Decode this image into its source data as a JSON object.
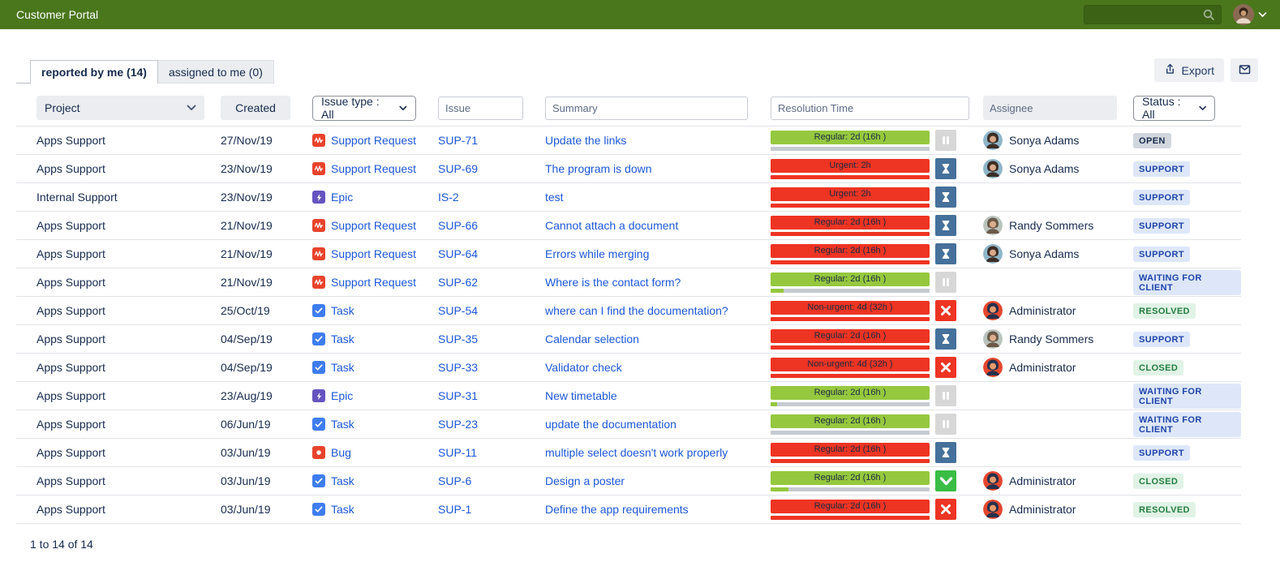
{
  "app": {
    "title": "Customer Portal"
  },
  "header": {
    "search_placeholder": ""
  },
  "tabs": {
    "reported": "reported by me (14)",
    "assigned": "assigned to me (0)"
  },
  "toolbar": {
    "export_label": "Export"
  },
  "filters": {
    "project_label": "Project",
    "created_label": "Created",
    "issue_type_label": "Issue type : All",
    "issue_placeholder": "Issue",
    "summary_placeholder": "Summary",
    "resolution_placeholder": "Resolution Time",
    "assignee_placeholder": "Assignee",
    "status_label": "Status : All"
  },
  "colors": {
    "appbar_green": "#4a771c",
    "sla_green": "#95c83e",
    "sla_red": "#ee3423",
    "sla_gray": "#c6cbd1",
    "hourglass_blue": "#45719b",
    "check_green": "#3abd45",
    "link_blue": "#1d58d8",
    "badge_blue_bg": "#dee7fa",
    "badge_green_bg": "#e1f3e6",
    "badge_gray_bg": "#d2d6dd"
  },
  "table": {
    "rows": [
      {
        "project": "Apps Support",
        "created": "27/Nov/19",
        "issue_type": "Support Request",
        "issue_key": "SUP-71",
        "summary": "Update the links",
        "resolution": {
          "label": "Regular: 2d (16h )",
          "bar_color": "green",
          "sub_bar": "gray",
          "sub_fill_pct": 0,
          "icon": "pause-icon"
        },
        "assignee": "Sonya Adams",
        "avatar": "sonya",
        "status": "OPEN",
        "status_color": "gray"
      },
      {
        "project": "Apps Support",
        "created": "23/Nov/19",
        "issue_type": "Support Request",
        "issue_key": "SUP-69",
        "summary": "The program is down",
        "resolution": {
          "label": "Urgent: 2h",
          "bar_color": "red",
          "sub_bar": "red",
          "sub_fill_pct": 100,
          "icon": "hourglass-icon"
        },
        "assignee": "Sonya Adams",
        "avatar": "sonya",
        "status": "SUPPORT",
        "status_color": "blue"
      },
      {
        "project": "Internal Support",
        "created": "23/Nov/19",
        "issue_type": "Epic",
        "issue_key": "IS-2",
        "summary": "test",
        "resolution": {
          "label": "Urgent: 2h",
          "bar_color": "red",
          "sub_bar": "red",
          "sub_fill_pct": 100,
          "icon": "hourglass-icon"
        },
        "assignee": null,
        "avatar": null,
        "status": "SUPPORT",
        "status_color": "blue"
      },
      {
        "project": "Apps Support",
        "created": "21/Nov/19",
        "issue_type": "Support Request",
        "issue_key": "SUP-66",
        "summary": "Cannot attach a document",
        "resolution": {
          "label": "Regular: 2d (16h )",
          "bar_color": "red",
          "sub_bar": "red",
          "sub_fill_pct": 100,
          "icon": "hourglass-icon"
        },
        "assignee": "Randy Sommers",
        "avatar": "randy",
        "status": "SUPPORT",
        "status_color": "blue"
      },
      {
        "project": "Apps Support",
        "created": "21/Nov/19",
        "issue_type": "Support Request",
        "issue_key": "SUP-64",
        "summary": "Errors while merging",
        "resolution": {
          "label": "Regular: 2d (16h )",
          "bar_color": "red",
          "sub_bar": "red",
          "sub_fill_pct": 100,
          "icon": "hourglass-icon"
        },
        "assignee": "Sonya Adams",
        "avatar": "sonya",
        "status": "SUPPORT",
        "status_color": "blue"
      },
      {
        "project": "Apps Support",
        "created": "21/Nov/19",
        "issue_type": "Support Request",
        "issue_key": "SUP-62",
        "summary": "Where is the contact form?",
        "resolution": {
          "label": "Regular: 2d (16h )",
          "bar_color": "green",
          "sub_bar": "gray",
          "sub_fill_pct": 8,
          "icon": "pause-icon"
        },
        "assignee": null,
        "avatar": null,
        "status": "WAITING FOR CLIENT",
        "status_color": "blue"
      },
      {
        "project": "Apps Support",
        "created": "25/Oct/19",
        "issue_type": "Task",
        "issue_key": "SUP-54",
        "summary": "where can I find the documentation?",
        "resolution": {
          "label": "Non-urgent: 4d (32h )",
          "bar_color": "red",
          "sub_bar": "red",
          "sub_fill_pct": 100,
          "icon": "x-icon"
        },
        "assignee": "Administrator",
        "avatar": "admin",
        "status": "RESOLVED",
        "status_color": "green"
      },
      {
        "project": "Apps Support",
        "created": "04/Sep/19",
        "issue_type": "Task",
        "issue_key": "SUP-35",
        "summary": "Calendar selection",
        "resolution": {
          "label": "Regular: 2d (16h )",
          "bar_color": "red",
          "sub_bar": "red",
          "sub_fill_pct": 100,
          "icon": "hourglass-icon"
        },
        "assignee": "Randy Sommers",
        "avatar": "randy",
        "status": "SUPPORT",
        "status_color": "blue"
      },
      {
        "project": "Apps Support",
        "created": "04/Sep/19",
        "issue_type": "Task",
        "issue_key": "SUP-33",
        "summary": "Validator check",
        "resolution": {
          "label": "Non-urgent: 4d (32h )",
          "bar_color": "red",
          "sub_bar": "red",
          "sub_fill_pct": 100,
          "icon": "x-icon"
        },
        "assignee": "Administrator",
        "avatar": "admin",
        "status": "CLOSED",
        "status_color": "green"
      },
      {
        "project": "Apps Support",
        "created": "23/Aug/19",
        "issue_type": "Epic",
        "issue_key": "SUP-31",
        "summary": "New timetable",
        "resolution": {
          "label": "Regular: 2d (16h )",
          "bar_color": "green",
          "sub_bar": "gray",
          "sub_fill_pct": 4,
          "icon": "pause-icon"
        },
        "assignee": null,
        "avatar": null,
        "status": "WAITING FOR CLIENT",
        "status_color": "blue"
      },
      {
        "project": "Apps Support",
        "created": "06/Jun/19",
        "issue_type": "Task",
        "issue_key": "SUP-23",
        "summary": "update the documentation",
        "resolution": {
          "label": "Regular: 2d (16h )",
          "bar_color": "green",
          "sub_bar": "gray",
          "sub_fill_pct": 0,
          "icon": "pause-icon"
        },
        "assignee": null,
        "avatar": null,
        "status": "WAITING FOR CLIENT",
        "status_color": "blue"
      },
      {
        "project": "Apps Support",
        "created": "03/Jun/19",
        "issue_type": "Bug",
        "issue_key": "SUP-11",
        "summary": "multiple select doesn't work properly",
        "resolution": {
          "label": "Regular: 2d (16h )",
          "bar_color": "red",
          "sub_bar": "red",
          "sub_fill_pct": 100,
          "icon": "hourglass-icon"
        },
        "assignee": null,
        "avatar": null,
        "status": "SUPPORT",
        "status_color": "blue"
      },
      {
        "project": "Apps Support",
        "created": "03/Jun/19",
        "issue_type": "Task",
        "issue_key": "SUP-6",
        "summary": "Design a poster",
        "resolution": {
          "label": "Regular: 2d (16h )",
          "bar_color": "green",
          "sub_bar": "gray",
          "sub_fill_pct": 11,
          "icon": "check-icon"
        },
        "assignee": "Administrator",
        "avatar": "admin",
        "status": "CLOSED",
        "status_color": "green"
      },
      {
        "project": "Apps Support",
        "created": "03/Jun/19",
        "issue_type": "Task",
        "issue_key": "SUP-1",
        "summary": "Define the app requirements",
        "resolution": {
          "label": "Regular: 2d (16h )",
          "bar_color": "red",
          "sub_bar": "red",
          "sub_fill_pct": 100,
          "icon": "x-icon"
        },
        "assignee": "Administrator",
        "avatar": "admin",
        "status": "RESOLVED",
        "status_color": "green"
      }
    ]
  },
  "footer": {
    "range": "1 to 14 of 14"
  }
}
